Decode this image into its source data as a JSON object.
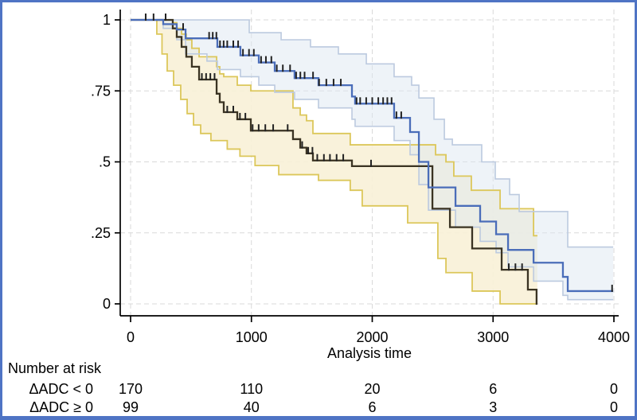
{
  "chart_data": {
    "type": "line",
    "subtype": "kaplan-meier-step",
    "title": "",
    "xlabel": "Analysis time",
    "ylabel": "",
    "xlim": [
      0,
      4000
    ],
    "ylim": [
      0,
      1
    ],
    "grid": true,
    "grid_style": "dashed",
    "grid_color": "#d9d9d9",
    "x_ticks": [
      0,
      1000,
      2000,
      3000,
      4000
    ],
    "y_ticks": [
      {
        "label": "0",
        "v": 0
      },
      {
        "label": ".25",
        "v": 0.25
      },
      {
        "label": ".5",
        "v": 0.5
      },
      {
        "label": ".75",
        "v": 0.75
      },
      {
        "label": "1",
        "v": 1
      }
    ],
    "frame_color": "#4f74c4",
    "series": [
      {
        "name": "ΔADC < 0",
        "color": "#3a3322",
        "band_fill": "#f8f1d7",
        "band_fill_opacity": 0.9,
        "band_line_color": "#dcc75a",
        "t": [
          0,
          349,
          382,
          422,
          461,
          507,
          567,
          712,
          738,
          771,
          883,
          995,
          1344,
          1404,
          1456,
          1509,
          1832,
          2498,
          2643,
          2827,
          3071,
          3288,
          3360
        ],
        "v": [
          1,
          0.97,
          0.94,
          0.905,
          0.87,
          0.835,
          0.79,
          0.74,
          0.71,
          0.675,
          0.65,
          0.61,
          0.58,
          0.55,
          0.53,
          0.505,
          0.485,
          0.335,
          0.27,
          0.195,
          0.12,
          0.05,
          0
        ],
        "end_t": 3367,
        "censor_t": [
          125,
          190,
          290,
          590,
          625,
          660,
          695,
          800,
          850,
          905,
          950,
          1010,
          1060,
          1115,
          1180,
          1300,
          1420,
          1470,
          1505,
          1545,
          1600,
          1650,
          1705,
          1760,
          1990,
          3130,
          3185,
          3240
        ],
        "ci_upper": {
          "t": [
            0,
            349,
            382,
            422,
            461,
            507,
            567,
            712,
            738,
            771,
            883,
            995,
            1344,
            1404,
            1456,
            1509,
            1818,
            2524,
            2610,
            2675,
            2820,
            3058,
            3335
          ],
          "v": [
            1,
            0.99,
            0.97,
            0.95,
            0.93,
            0.9,
            0.87,
            0.835,
            0.81,
            0.8,
            0.77,
            0.75,
            0.69,
            0.665,
            0.645,
            0.6,
            0.56,
            0.525,
            0.5,
            0.45,
            0.4,
            0.335,
            0.24
          ]
        },
        "ci_lower": {
          "t": [
            0,
            217,
            260,
            303,
            356,
            415,
            468,
            521,
            580,
            665,
            800,
            905,
            1030,
            1226,
            1555,
            1818,
            1917,
            2293,
            2543,
            2610,
            2827,
            3058
          ],
          "v": [
            1,
            0.95,
            0.88,
            0.82,
            0.77,
            0.72,
            0.67,
            0.63,
            0.6,
            0.575,
            0.545,
            0.52,
            0.487,
            0.455,
            0.435,
            0.4,
            0.345,
            0.285,
            0.16,
            0.11,
            0.045,
            0
          ]
        }
      },
      {
        "name": "ΔADC ≥ 0",
        "color": "#4a6db9",
        "band_fill": "#dde7f2",
        "band_fill_opacity": 0.5,
        "band_line_color": "#bccadf",
        "t": [
          0,
          270,
          382,
          455,
          718,
          909,
          1061,
          1193,
          1357,
          1555,
          1832,
          1858,
          2181,
          2313,
          2386,
          2465,
          2689,
          2893,
          3025,
          3124,
          3335,
          3578,
          3618
        ],
        "v": [
          1,
          0.985,
          0.966,
          0.935,
          0.905,
          0.875,
          0.85,
          0.82,
          0.795,
          0.77,
          0.73,
          0.705,
          0.655,
          0.605,
          0.5,
          0.41,
          0.345,
          0.29,
          0.245,
          0.19,
          0.145,
          0.095,
          0.045
        ],
        "end_t": 3994,
        "censor_t": [
          435,
          650,
          680,
          710,
          740,
          770,
          800,
          850,
          890,
          930,
          980,
          1020,
          1080,
          1120,
          1165,
          1210,
          1260,
          1320,
          1370,
          1405,
          1440,
          1510,
          1560,
          1620,
          1680,
          1740,
          1870,
          1900,
          1950,
          2000,
          2050,
          2090,
          2125,
          2160,
          2200,
          2240,
          3985
        ],
        "ci_upper": {
          "t": [
            0,
            982,
            1246,
            1489,
            1720,
            1951,
            2181,
            2326,
            2386,
            2511,
            2597,
            2663,
            2906,
            3018,
            3137,
            3216,
            3618
          ],
          "v": [
            1,
            0.955,
            0.93,
            0.905,
            0.88,
            0.845,
            0.8,
            0.77,
            0.725,
            0.65,
            0.58,
            0.56,
            0.5,
            0.44,
            0.385,
            0.325,
            0.2
          ]
        },
        "ci_lower": {
          "t": [
            0,
            270,
            382,
            455,
            632,
            718,
            909,
            1061,
            1193,
            1357,
            1555,
            1832,
            1858,
            2181,
            2313,
            2386,
            2465,
            2689,
            2893,
            3025,
            3124,
            3335,
            3578,
            3618
          ],
          "v": [
            1,
            0.97,
            0.93,
            0.88,
            0.855,
            0.825,
            0.8,
            0.77,
            0.745,
            0.72,
            0.69,
            0.65,
            0.625,
            0.575,
            0.525,
            0.42,
            0.33,
            0.27,
            0.22,
            0.18,
            0.13,
            0.08,
            0.03,
            0.015
          ]
        }
      }
    ],
    "censor_tick_color": "#222222",
    "risk_table": {
      "header": "Number at risk",
      "times": [
        0,
        1000,
        2000,
        3000,
        4000
      ],
      "rows": [
        {
          "label": "ΔADC < 0",
          "color": "#8a6d15",
          "counts": [
            "170",
            "110",
            "20",
            "6",
            "0"
          ]
        },
        {
          "label": "ΔADC ≥ 0",
          "color": "#3e64b5",
          "counts": [
            "99",
            "40",
            "6",
            "3",
            "0"
          ]
        }
      ]
    }
  }
}
